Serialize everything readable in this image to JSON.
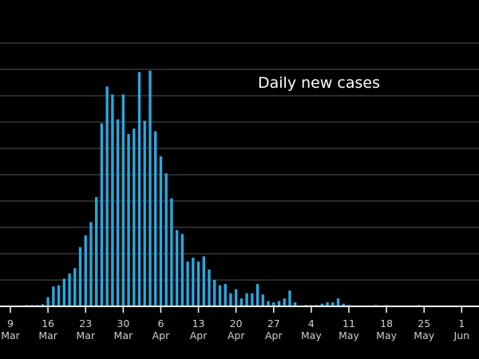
{
  "chart_data": {
    "type": "bar",
    "title": "Daily new cases",
    "bar_color": "#29a8de",
    "background_color": "#000000",
    "grid_color": "#555555",
    "axis_color": "#ffffff",
    "grid": true,
    "x_start": "2020-03-09",
    "xticks": [
      {
        "day": "9",
        "month": "Mar"
      },
      {
        "day": "16",
        "month": "Mar"
      },
      {
        "day": "23",
        "month": "Mar"
      },
      {
        "day": "30",
        "month": "Mar"
      },
      {
        "day": "6",
        "month": "Apr"
      },
      {
        "day": "13",
        "month": "Apr"
      },
      {
        "day": "20",
        "month": "Apr"
      },
      {
        "day": "27",
        "month": "Apr"
      },
      {
        "day": "4",
        "month": "May"
      },
      {
        "day": "11",
        "month": "May"
      },
      {
        "day": "18",
        "month": "May"
      },
      {
        "day": "25",
        "month": "May"
      },
      {
        "day": "1",
        "month": "Jun"
      }
    ],
    "dates": [
      "Mar 9",
      "Mar 10",
      "Mar 11",
      "Mar 12",
      "Mar 13",
      "Mar 14",
      "Mar 15",
      "Mar 16",
      "Mar 17",
      "Mar 18",
      "Mar 19",
      "Mar 20",
      "Mar 21",
      "Mar 22",
      "Mar 23",
      "Mar 24",
      "Mar 25",
      "Mar 26",
      "Mar 27",
      "Mar 28",
      "Mar 29",
      "Mar 30",
      "Mar 31",
      "Apr 1",
      "Apr 2",
      "Apr 3",
      "Apr 4",
      "Apr 5",
      "Apr 6",
      "Apr 7",
      "Apr 8",
      "Apr 9",
      "Apr 10",
      "Apr 11",
      "Apr 12",
      "Apr 13",
      "Apr 14",
      "Apr 15",
      "Apr 16",
      "Apr 17",
      "Apr 18",
      "Apr 19",
      "Apr 20",
      "Apr 21",
      "Apr 22",
      "Apr 23",
      "Apr 24",
      "Apr 25",
      "Apr 26",
      "Apr 27",
      "Apr 28",
      "Apr 29",
      "Apr 30",
      "May 1",
      "May 2",
      "May 3",
      "May 4",
      "May 5",
      "May 6",
      "May 7",
      "May 8",
      "May 9",
      "May 10",
      "May 11",
      "May 12",
      "May 13",
      "May 14",
      "May 15",
      "May 16",
      "May 17",
      "May 18",
      "May 19",
      "May 20",
      "May 21",
      "May 22",
      "May 23",
      "May 24",
      "May 25",
      "May 26",
      "May 27",
      "May 28",
      "May 29",
      "May 30",
      "May 31",
      "Jun 1"
    ],
    "values": [
      0,
      0,
      0,
      0.5,
      0.5,
      0.5,
      0.8,
      3.5,
      7.5,
      8,
      10.5,
      12.5,
      14.5,
      22.5,
      27,
      32,
      41.5,
      69.5,
      83.5,
      80.5,
      71,
      80.5,
      65.5,
      67.5,
      89,
      70.5,
      89.5,
      66.5,
      57,
      50.5,
      41,
      29,
      27.5,
      17,
      18.5,
      17,
      19,
      14,
      10,
      8,
      8.5,
      5,
      6.5,
      3,
      5,
      5,
      8.5,
      4.5,
      2,
      1.5,
      2,
      3,
      6,
      1.5,
      0,
      0.5,
      0.5,
      0.5,
      1,
      1.5,
      1.5,
      3,
      1,
      0.5,
      0,
      0,
      0,
      0,
      0.5,
      0,
      0.5,
      0,
      0,
      0,
      0,
      0,
      0.5,
      0,
      0,
      0,
      0,
      0,
      0,
      0,
      0
    ],
    "ylim": [
      0,
      100
    ]
  }
}
